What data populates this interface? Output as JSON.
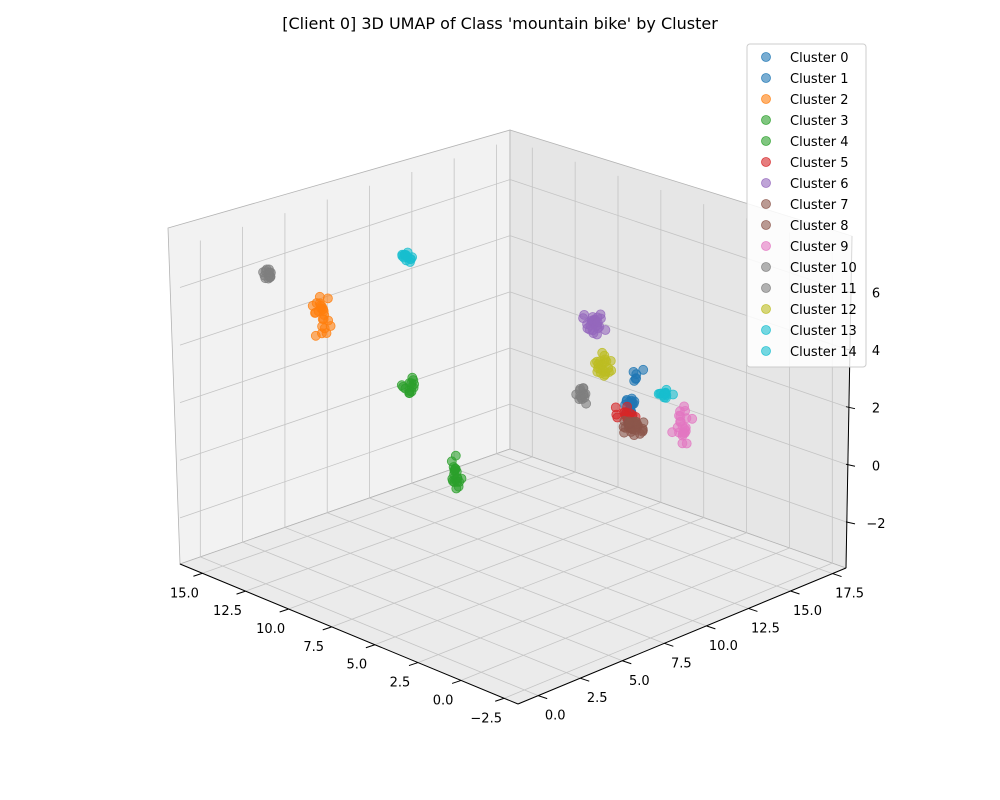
{
  "chart_data": {
    "type": "scatter",
    "title": "[Client 0] 3D UMAP of Class 'mountain bike' by Cluster",
    "projection": "3d",
    "grid": true,
    "legend_position": "top-right",
    "x_ticks": [
      "15.0",
      "12.5",
      "10.0",
      "7.5",
      "5.0",
      "2.5",
      "0.0",
      "−2.5"
    ],
    "y_ticks": [
      "0.0",
      "2.5",
      "5.0",
      "7.5",
      "10.0",
      "12.5",
      "15.0",
      "17.5"
    ],
    "z_ticks": [
      "−2",
      "0",
      "2",
      "4",
      "6"
    ],
    "xlim": [
      -3.3,
      16.3
    ],
    "ylim": [
      -1.2,
      18.3
    ],
    "zlim": [
      -3.6,
      7.4
    ],
    "series": [
      {
        "name": "Cluster 0",
        "color": "#1f77b4",
        "center": [
          4.6,
          14.0,
          2.4
        ],
        "spread": [
          0.35,
          0.35,
          0.45
        ],
        "n": 6
      },
      {
        "name": "Cluster 1",
        "color": "#1f77b4",
        "center": [
          3.0,
          11.9,
          2.2
        ],
        "spread": [
          0.25,
          0.25,
          0.45
        ],
        "n": 18
      },
      {
        "name": "Cluster 2",
        "color": "#ff7f0e",
        "center": [
          12.4,
          3.2,
          5.1
        ],
        "spread": [
          0.25,
          0.25,
          0.55
        ],
        "n": 24
      },
      {
        "name": "Cluster 3",
        "color": "#2ca02c",
        "center": [
          4.8,
          3.4,
          1.2
        ],
        "spread": [
          0.15,
          0.15,
          0.45
        ],
        "n": 20
      },
      {
        "name": "Cluster 4",
        "color": "#2ca02c",
        "center": [
          9.0,
          4.9,
          3.0
        ],
        "spread": [
          0.25,
          0.25,
          0.25
        ],
        "n": 14
      },
      {
        "name": "Cluster 5",
        "color": "#d62728",
        "center": [
          4.2,
          12.7,
          1.5
        ],
        "spread": [
          0.35,
          0.35,
          0.2
        ],
        "n": 16
      },
      {
        "name": "Cluster 6",
        "color": "#9467bd",
        "center": [
          6.4,
          13.2,
          4.0
        ],
        "spread": [
          0.35,
          0.35,
          0.35
        ],
        "n": 26
      },
      {
        "name": "Cluster 7",
        "color": "#8c564b",
        "center": [
          2.4,
          11.7,
          1.6
        ],
        "spread": [
          0.3,
          0.3,
          0.2
        ],
        "n": 10
      },
      {
        "name": "Cluster 8",
        "color": "#8c564b",
        "center": [
          3.6,
          12.5,
          1.2
        ],
        "spread": [
          0.3,
          0.3,
          0.2
        ],
        "n": 26
      },
      {
        "name": "Cluster 9",
        "color": "#e377c2",
        "center": [
          5.0,
          17.0,
          -0.1
        ],
        "spread": [
          0.3,
          0.3,
          0.5
        ],
        "n": 22
      },
      {
        "name": "Cluster 10",
        "color": "#7f7f7f",
        "center": [
          2.6,
          8.6,
          3.3
        ],
        "spread": [
          0.2,
          0.2,
          0.35
        ],
        "n": 14
      },
      {
        "name": "Cluster 11",
        "color": "#7f7f7f",
        "center": [
          16.0,
          3.6,
          5.6
        ],
        "spread": [
          0.2,
          0.2,
          0.15
        ],
        "n": 14
      },
      {
        "name": "Cluster 12",
        "color": "#bcbd22",
        "center": [
          4.0,
          11.2,
          3.5
        ],
        "spread": [
          0.3,
          0.3,
          0.35
        ],
        "n": 22
      },
      {
        "name": "Cluster 13",
        "color": "#17becf",
        "center": [
          8.2,
          3.8,
          7.9
        ],
        "spread": [
          0.2,
          0.2,
          0.12
        ],
        "n": 14
      },
      {
        "name": "Cluster 14",
        "color": "#17becf",
        "center": [
          5.1,
          16.1,
          1.2
        ],
        "spread": [
          0.25,
          0.25,
          0.12
        ],
        "n": 14
      }
    ]
  }
}
